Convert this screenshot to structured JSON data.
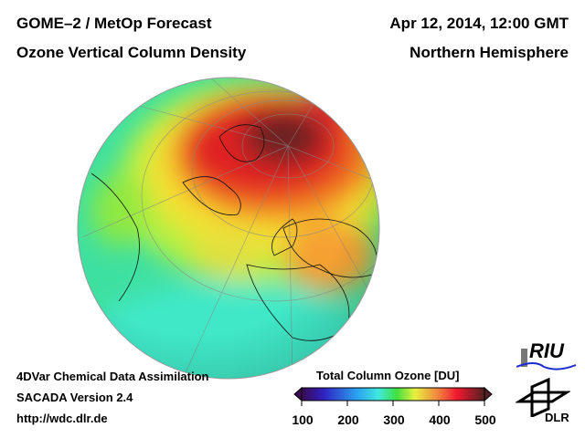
{
  "header": {
    "title_left": "GOME–2 / MetOp Forecast",
    "subtitle_left": "Ozone Vertical Column Density",
    "title_right": "Apr 12, 2014, 12:00 GMT",
    "subtitle_right": "Northern Hemisphere"
  },
  "footer": {
    "line1": "4DVar Chemical Data Assimilation",
    "line2": "SACADA Version 2.4",
    "line3": "http://wdc.dlr.de"
  },
  "colorbar": {
    "title": "Total Column Ozone [DU]",
    "ticks": [
      "100",
      "200",
      "300",
      "400",
      "500"
    ],
    "range": [
      100,
      500
    ]
  },
  "logos": {
    "riu": "RIU",
    "dlr": "DLR"
  }
}
